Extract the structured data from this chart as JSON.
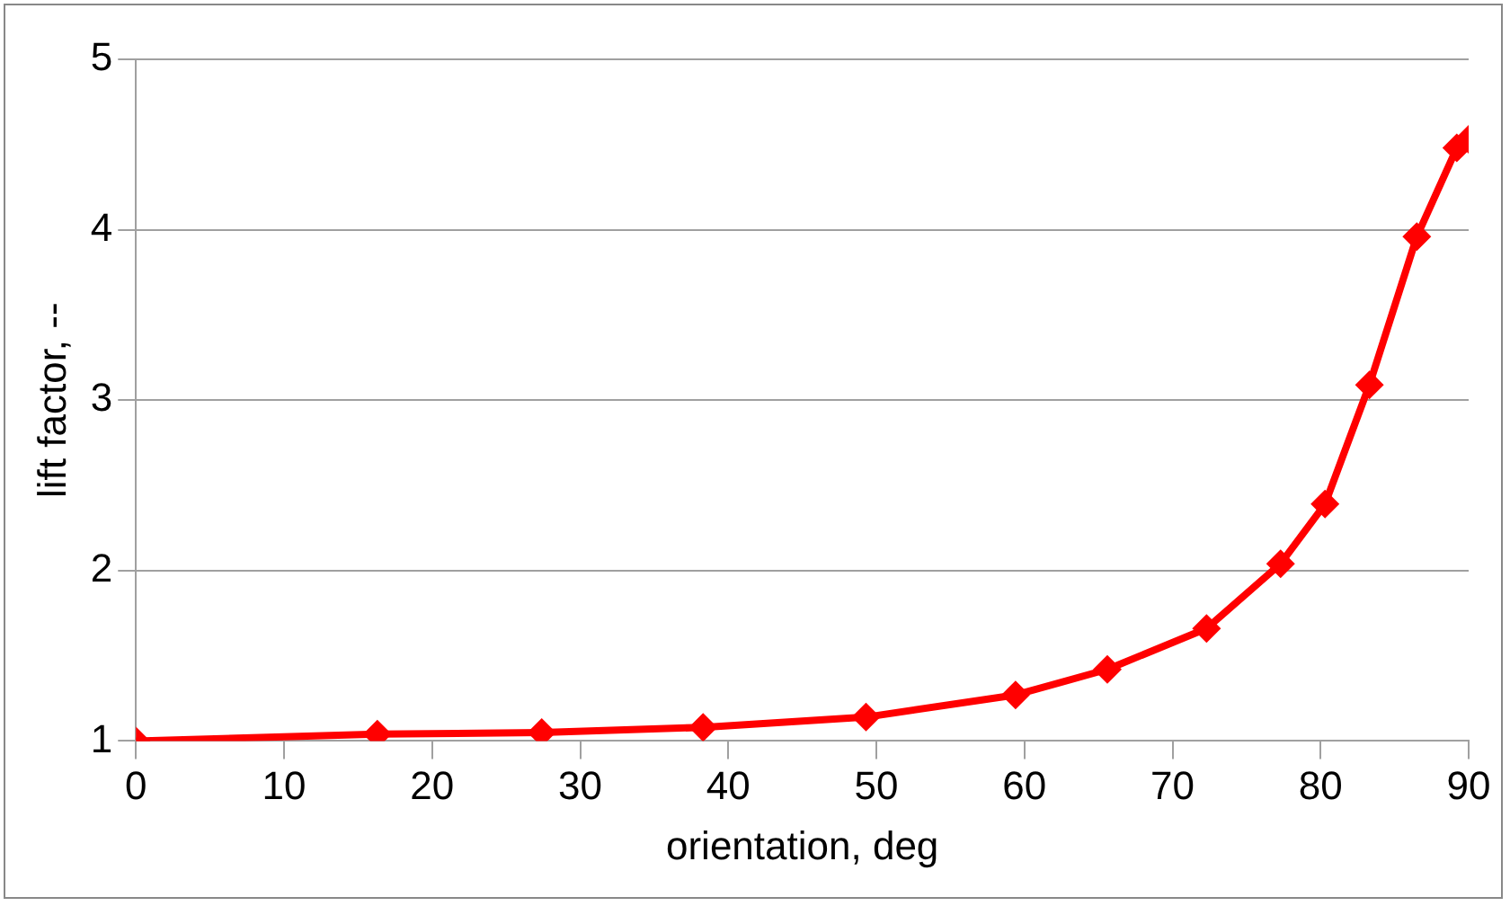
{
  "chart_data": {
    "type": "line",
    "xlabel": "orientation, deg",
    "ylabel": "lift factor, --",
    "x": [
      0,
      16.3,
      27.4,
      38.3,
      49.3,
      59.4,
      65.6,
      72.3,
      77.3,
      80.3,
      83.3,
      86.5,
      89.2,
      90
    ],
    "series": [
      {
        "color": "#ff0000",
        "values": [
          1.0,
          1.04,
          1.05,
          1.08,
          1.14,
          1.27,
          1.42,
          1.66,
          2.04,
          2.39,
          3.09,
          3.96,
          4.48,
          4.53
        ]
      }
    ],
    "xlim": [
      0,
      90
    ],
    "xticks": [
      0,
      10,
      20,
      30,
      40,
      50,
      60,
      70,
      80,
      90
    ],
    "ylim": [
      1,
      5
    ],
    "yticks": [
      1,
      2,
      3,
      4,
      5
    ],
    "grid": "y",
    "legend": false,
    "marker": "diamond",
    "line_style": "solid"
  }
}
